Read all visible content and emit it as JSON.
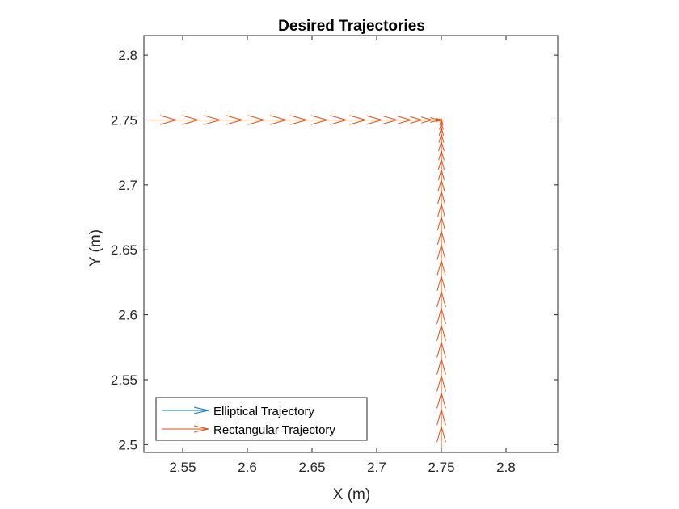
{
  "chart_data": {
    "type": "quiver",
    "title": "Desired Trajectories",
    "xlabel": "X (m)",
    "ylabel": "Y (m)",
    "xlim": [
      2.52,
      2.84
    ],
    "ylim": [
      2.494,
      2.815
    ],
    "xticks": [
      2.55,
      2.6,
      2.65,
      2.7,
      2.75,
      2.8
    ],
    "xtick_labels": [
      "2.55",
      "2.6",
      "2.65",
      "2.7",
      "2.75",
      "2.8"
    ],
    "yticks": [
      2.5,
      2.55,
      2.6,
      2.65,
      2.7,
      2.75,
      2.8
    ],
    "ytick_labels": [
      "2.5",
      "2.55",
      "2.6",
      "2.65",
      "2.7",
      "2.75",
      "2.8"
    ],
    "grid": false,
    "legend_position": "bottom-left",
    "series": [
      {
        "name": "Elliptical Trajectory",
        "color": "#0072BD",
        "points": []
      },
      {
        "name": "Rectangular Trajectory",
        "color": "#D95319",
        "segments": [
          {
            "direction": "left-to-right",
            "y": 2.75,
            "x": [
              2.52,
              2.537,
              2.554,
              2.571,
              2.588,
              2.605,
              2.622,
              2.638,
              2.654,
              2.669,
              2.684,
              2.697,
              2.709,
              2.72,
              2.729,
              2.737,
              2.743,
              2.747,
              2.749
            ]
          },
          {
            "direction": "bottom-to-top",
            "x": 2.75,
            "y": [
              2.494,
              2.507,
              2.52,
              2.533,
              2.546,
              2.559,
              2.572,
              2.585,
              2.598,
              2.611,
              2.623,
              2.635,
              2.647,
              2.658,
              2.669,
              2.679,
              2.689,
              2.698,
              2.706,
              2.714,
              2.721,
              2.728,
              2.734,
              2.739,
              2.743,
              2.746,
              2.748,
              2.749
            ]
          }
        ]
      }
    ]
  }
}
